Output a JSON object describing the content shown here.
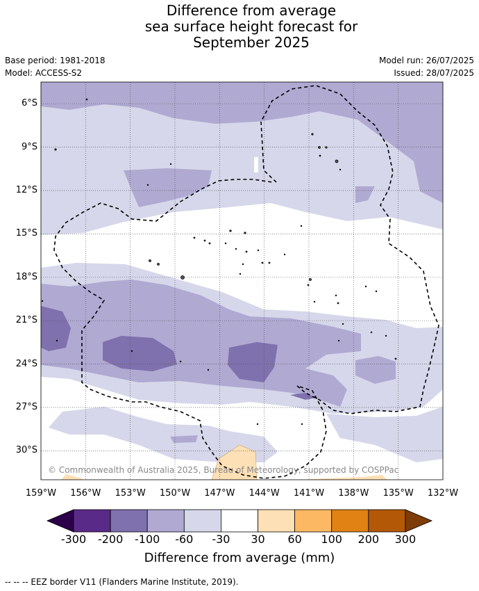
{
  "title": {
    "line1": "Difference from average",
    "line2": "sea surface height forecast for",
    "line3": "September 2025"
  },
  "meta": {
    "base_period": "Base period: 1981-2018",
    "model": "Model: ACCESS-S2",
    "model_run": "Model run: 26/07/2025",
    "issued": "Issued: 28/07/2025"
  },
  "map": {
    "extent": {
      "lon_min": -159,
      "lon_max": -132,
      "lat_min": -32,
      "lat_max": -4.5
    },
    "lat_ticks": [
      "6°S",
      "9°S",
      "12°S",
      "15°S",
      "18°S",
      "21°S",
      "24°S",
      "27°S",
      "30°S"
    ],
    "lon_ticks": [
      "159°W",
      "156°W",
      "153°W",
      "150°W",
      "147°W",
      "144°W",
      "141°W",
      "138°W",
      "135°W",
      "132°W"
    ],
    "copyright": "© Commonwealth of Australia 2025, Bureau of Meteorology, supported by COSPPac",
    "colors": {
      "n300": "#5a2a88",
      "n200": "#7f70ae",
      "n100": "#b0a9d2",
      "n60": "#d6d7ea",
      "zero": "#ffffff",
      "p30": "#fee0b6",
      "p60": "#fdb863",
      "p100": "#e08214",
      "p200": "#b35806",
      "over": "#7f3b08",
      "under": "#2d004b"
    }
  },
  "colorbar": {
    "labels": [
      "-300",
      "-200",
      "-100",
      "-60",
      "-30",
      "30",
      "60",
      "100",
      "200",
      "300"
    ],
    "title": "Difference from average (mm)"
  },
  "footer": "--  --  -- EEZ border V11 (Flanders Marine Institute, 2019)."
}
